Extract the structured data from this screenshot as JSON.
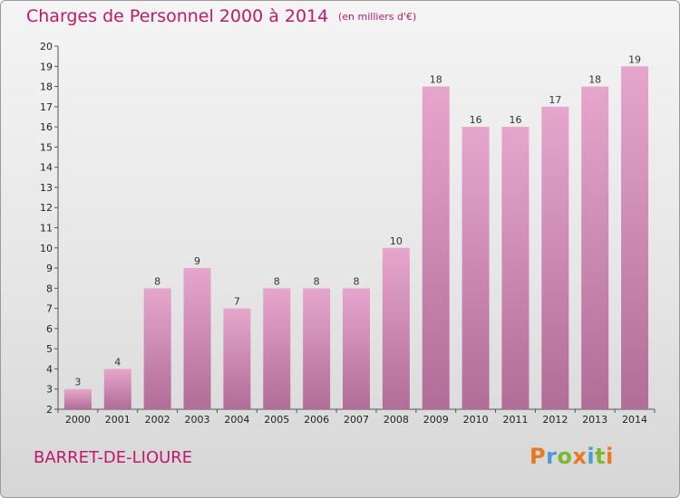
{
  "header": {
    "title": "Charges de Personnel 2000 à 2014",
    "subtitle": "(en milliers d'€)"
  },
  "footer": {
    "commune": "BARRET-DE-LIOURE",
    "logo_text": "Proxiti"
  },
  "colors": {
    "accent": "#c0186c",
    "bar_top": "#e6a6cc",
    "bar_bottom": "#b06d97",
    "logo_letters": [
      "#e8791e",
      "#4a9ad4",
      "#7cb82f",
      "#e8791e",
      "#4a9ad4",
      "#7cb82f",
      "#e8791e"
    ]
  },
  "chart_data": {
    "type": "bar",
    "title": "Charges de Personnel 2000 à 2014",
    "subtitle": "(en milliers d'€)",
    "categories": [
      "2000",
      "2001",
      "2002",
      "2003",
      "2004",
      "2005",
      "2006",
      "2007",
      "2008",
      "2009",
      "2010",
      "2011",
      "2012",
      "2013",
      "2014"
    ],
    "values": [
      3,
      4,
      8,
      9,
      7,
      8,
      8,
      8,
      10,
      18,
      16,
      16,
      17,
      18,
      19
    ],
    "ylim": [
      2,
      20
    ],
    "yticks": [
      2,
      3,
      4,
      5,
      6,
      7,
      8,
      9,
      10,
      11,
      12,
      13,
      14,
      15,
      16,
      17,
      18,
      19,
      20
    ],
    "grid": false,
    "legend": "none"
  }
}
